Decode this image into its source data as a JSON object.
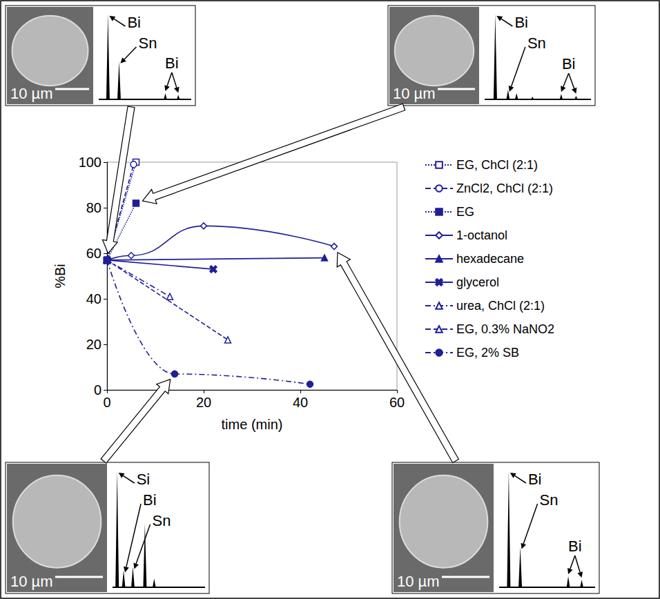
{
  "chart_data": {
    "type": "line",
    "x_label": "time (min)",
    "y_label": "%Bi",
    "xlim": [
      0,
      60
    ],
    "xticks": [
      0,
      20,
      40,
      60
    ],
    "ylim": [
      0,
      100
    ],
    "yticks": [
      0,
      20,
      40,
      60,
      80,
      100
    ],
    "grid": false,
    "legend": "right",
    "series": [
      {
        "name": "EG, ChCl (2:1)",
        "color": "#1f1f99",
        "marker": "open square",
        "line_style": "dotted",
        "x": [
          0,
          6
        ],
        "values": [
          57,
          100
        ]
      },
      {
        "name": "ZnCl2, ChCl (2:1)",
        "color": "#1f1f99",
        "marker": "open circle",
        "line_style": "dashed",
        "x": [
          0,
          5.5
        ],
        "values": [
          57,
          99
        ]
      },
      {
        "name": "EG",
        "color": "#1f1f99",
        "marker": "filled square",
        "line_style": "dotted",
        "x": [
          0,
          6
        ],
        "values": [
          57,
          82
        ]
      },
      {
        "name": "1-octanol",
        "color": "#1f1f99",
        "marker": "open diamond",
        "line_style": "solid",
        "x": [
          0,
          5,
          20,
          47
        ],
        "values": [
          57,
          59,
          72,
          63
        ]
      },
      {
        "name": "hexadecane",
        "color": "#1f1f99",
        "marker": "filled triangle",
        "line_style": "solid",
        "x": [
          0,
          45
        ],
        "values": [
          57,
          58
        ]
      },
      {
        "name": "glycerol",
        "color": "#1f1f99",
        "marker": "filled cross",
        "line_style": "solid",
        "x": [
          0,
          22
        ],
        "values": [
          57,
          53
        ]
      },
      {
        "name": "urea, ChCl (2:1)",
        "color": "#1f1f99",
        "marker": "open triangle",
        "line_style": "dashdot",
        "x": [
          0,
          13
        ],
        "values": [
          57,
          41
        ]
      },
      {
        "name": "EG, 0.3% NaNO2",
        "color": "#1f1f99",
        "marker": "open triangle",
        "line_style": "dashed",
        "x": [
          0,
          25
        ],
        "values": [
          57,
          22
        ]
      },
      {
        "name": "EG, 2% SB",
        "color": "#1f1f99",
        "marker": "filled circle",
        "line_style": "dashdot",
        "x": [
          0,
          14,
          42
        ],
        "values": [
          57,
          7,
          2.5
        ]
      }
    ]
  },
  "insets": [
    {
      "scale_bar": "10 µm",
      "points_to": {
        "series": "1-octanol",
        "point": 0
      },
      "peaks": [
        {
          "x": 10,
          "height": 100
        },
        {
          "x": 22,
          "height": 45
        },
        {
          "x": 72,
          "height": 8
        },
        {
          "x": 86,
          "height": 6
        }
      ],
      "labels": [
        {
          "text": "Bi",
          "peaks": [
            0
          ]
        },
        {
          "text": "Sn",
          "peaks": [
            1
          ]
        },
        {
          "text": "Bi",
          "peaks": [
            2,
            3
          ]
        }
      ]
    },
    {
      "scale_bar": "10 µm",
      "points_to": {
        "series": "EG",
        "point": 1
      },
      "peaks": [
        {
          "x": 10,
          "height": 100
        },
        {
          "x": 22,
          "height": 12
        },
        {
          "x": 30,
          "height": 8
        },
        {
          "x": 45,
          "height": 4
        },
        {
          "x": 72,
          "height": 7
        },
        {
          "x": 86,
          "height": 5
        }
      ],
      "labels": [
        {
          "text": "Bi",
          "peaks": [
            0
          ]
        },
        {
          "text": "Sn",
          "peaks": [
            1
          ]
        },
        {
          "text": "Bi",
          "peaks": [
            4,
            5
          ]
        }
      ]
    },
    {
      "scale_bar": "10 µm",
      "points_to": {
        "series": "EG, 2% SB",
        "point": 1
      },
      "peaks": [
        {
          "x": 5,
          "height": 100
        },
        {
          "x": 12,
          "height": 15
        },
        {
          "x": 22,
          "height": 18
        },
        {
          "x": 35,
          "height": 55
        },
        {
          "x": 45,
          "height": 8
        }
      ],
      "labels": [
        {
          "text": "Si",
          "peaks": [
            0
          ]
        },
        {
          "text": "Bi",
          "peaks": [
            1
          ]
        },
        {
          "text": "Sn",
          "peaks": [
            2
          ]
        }
      ]
    },
    {
      "scale_bar": "10 µm",
      "points_to": {
        "series": "1-octanol",
        "point": 3
      },
      "peaks": [
        {
          "x": 10,
          "height": 100
        },
        {
          "x": 22,
          "height": 35
        },
        {
          "x": 72,
          "height": 10
        },
        {
          "x": 86,
          "height": 7
        }
      ],
      "labels": [
        {
          "text": "Bi",
          "peaks": [
            0
          ]
        },
        {
          "text": "Sn",
          "peaks": [
            1
          ]
        },
        {
          "text": "Bi",
          "peaks": [
            2,
            3
          ]
        }
      ]
    }
  ]
}
